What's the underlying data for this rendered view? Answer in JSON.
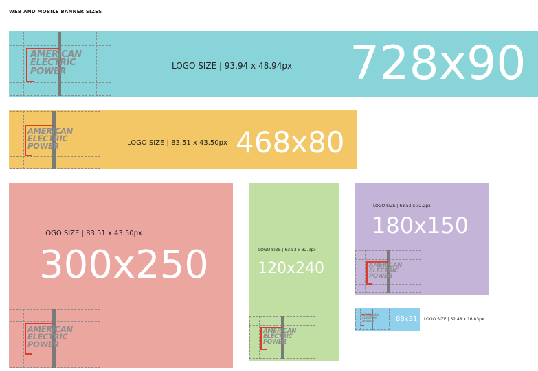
{
  "page": {
    "title": "WEB AND MOBILE BANNER SIZES"
  },
  "logo": {
    "line1": "AMERICAN",
    "line2": "ELECTRIC",
    "line3": "POWER"
  },
  "colors": {
    "teal": "#89d4d9",
    "gold": "#f3c766",
    "salmon": "#eca6a0",
    "green": "#c1dea3",
    "lavender": "#c4b5d8",
    "sky": "#8fd0ec",
    "logo_red": "#e0392f",
    "logo_gray": "#8e8e8e"
  },
  "banners": {
    "b728": {
      "size": "728x90",
      "logo_label": "LOGO SIZE | 93.94 x 48.94px"
    },
    "b468": {
      "size": "468x80",
      "logo_label": "LOGO SIZE | 83.51 x 43.50px"
    },
    "b300": {
      "size": "300x250",
      "logo_label": "LOGO SIZE | 83.51 x 43.50px"
    },
    "b120": {
      "size": "120x240",
      "logo_label": "LOGO SIZE | 63.53 x 32.2px"
    },
    "b180": {
      "size": "180x150",
      "logo_label": "LOGO SIZE | 63.53 x 32.2px"
    },
    "b88": {
      "size": "88x31",
      "logo_label": "LOGO SIZE | 32.48 x 16.83px"
    }
  }
}
